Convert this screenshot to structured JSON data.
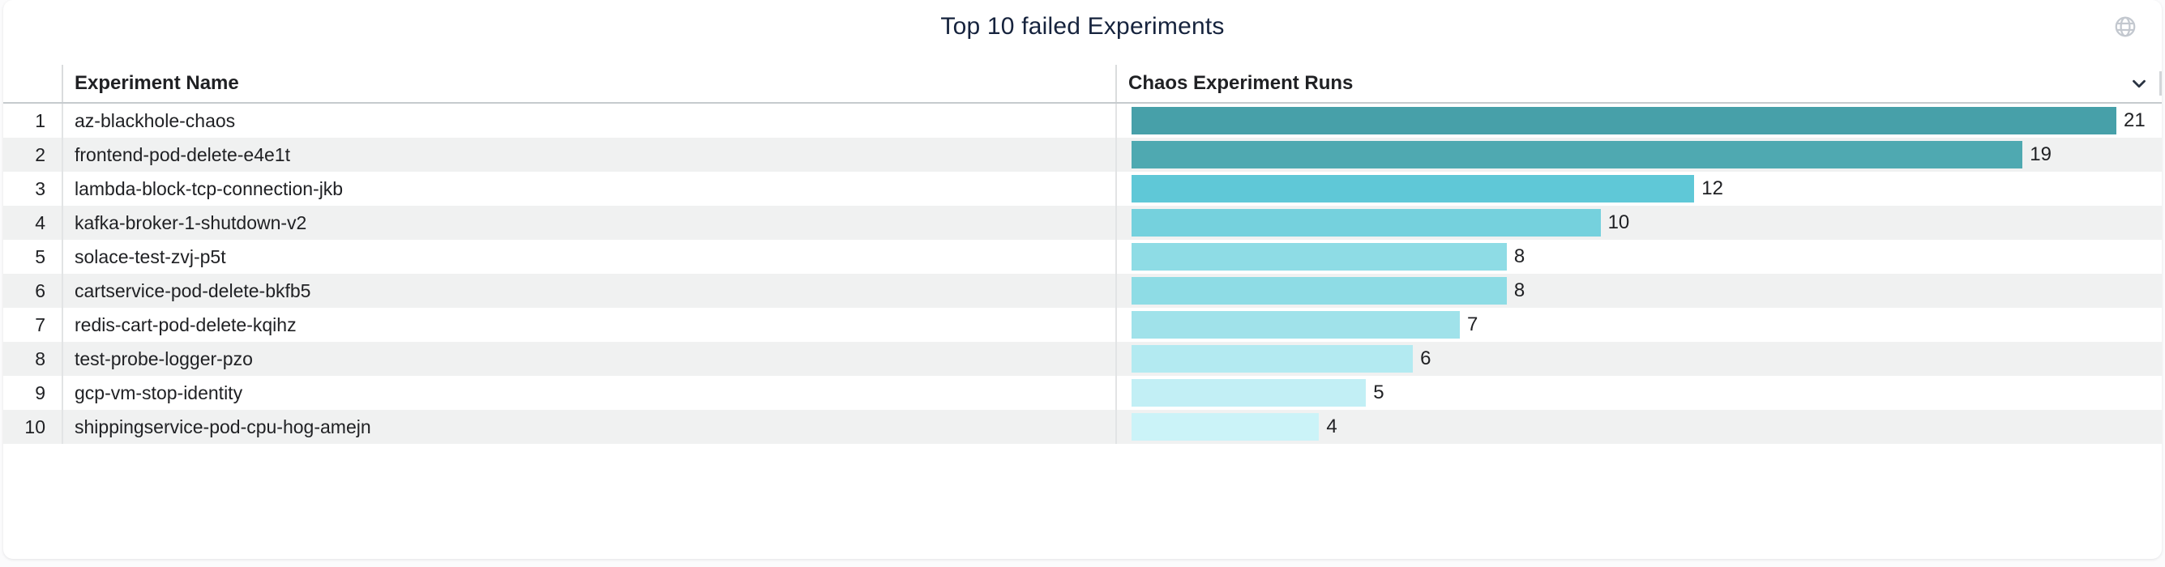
{
  "page": {
    "title": "Top 10 failed Experiments"
  },
  "icons": {
    "header_action": "globe-icon",
    "header_sort": "chevron-down-icon"
  },
  "colors": {
    "title_text": "#16233d",
    "table_text": "#202124",
    "alt_row_background": "#f0f1f1",
    "header_border": "#c6cbce",
    "column_divider": "#dadcdd",
    "globe_icon": "#c3c8cf",
    "chevron_icon": "#2a3442"
  },
  "table": {
    "columns": [
      {
        "label": "Experiment Name"
      },
      {
        "label": "Chaos Experiment Runs"
      }
    ],
    "row_numbers": [
      "1",
      "2",
      "3",
      "4",
      "5",
      "6",
      "7",
      "8",
      "9",
      "10"
    ]
  },
  "chart_data": {
    "type": "bar",
    "orientation": "horizontal",
    "title": "Top 10 failed Experiments",
    "category_axis_label": "Experiment Name",
    "value_axis_label": "Chaos Experiment Runs",
    "categories": [
      "az-blackhole-chaos",
      "frontend-pod-delete-e4e1t",
      "lambda-block-tcp-connection-jkb",
      "kafka-broker-1-shutdown-v2",
      "solace-test-zvj-p5t",
      "cartservice-pod-delete-bkfb5",
      "redis-cart-pod-delete-kqihz",
      "test-probe-logger-pzo",
      "gcp-vm-stop-identity",
      "shippingservice-pod-cpu-hog-amejn"
    ],
    "values": [
      21,
      19,
      12,
      10,
      8,
      8,
      7,
      6,
      5,
      4
    ],
    "xlim": [
      0,
      21
    ],
    "data_labels": true,
    "grid": false,
    "legend": false,
    "bar_colors": [
      "#47a0a9",
      "#4fa9b1",
      "#5fc8d7",
      "#75d1dd",
      "#8edce5",
      "#8edce5",
      "#a0e2ea",
      "#b3eaf1",
      "#c2eff5",
      "#cbf3f8"
    ]
  }
}
